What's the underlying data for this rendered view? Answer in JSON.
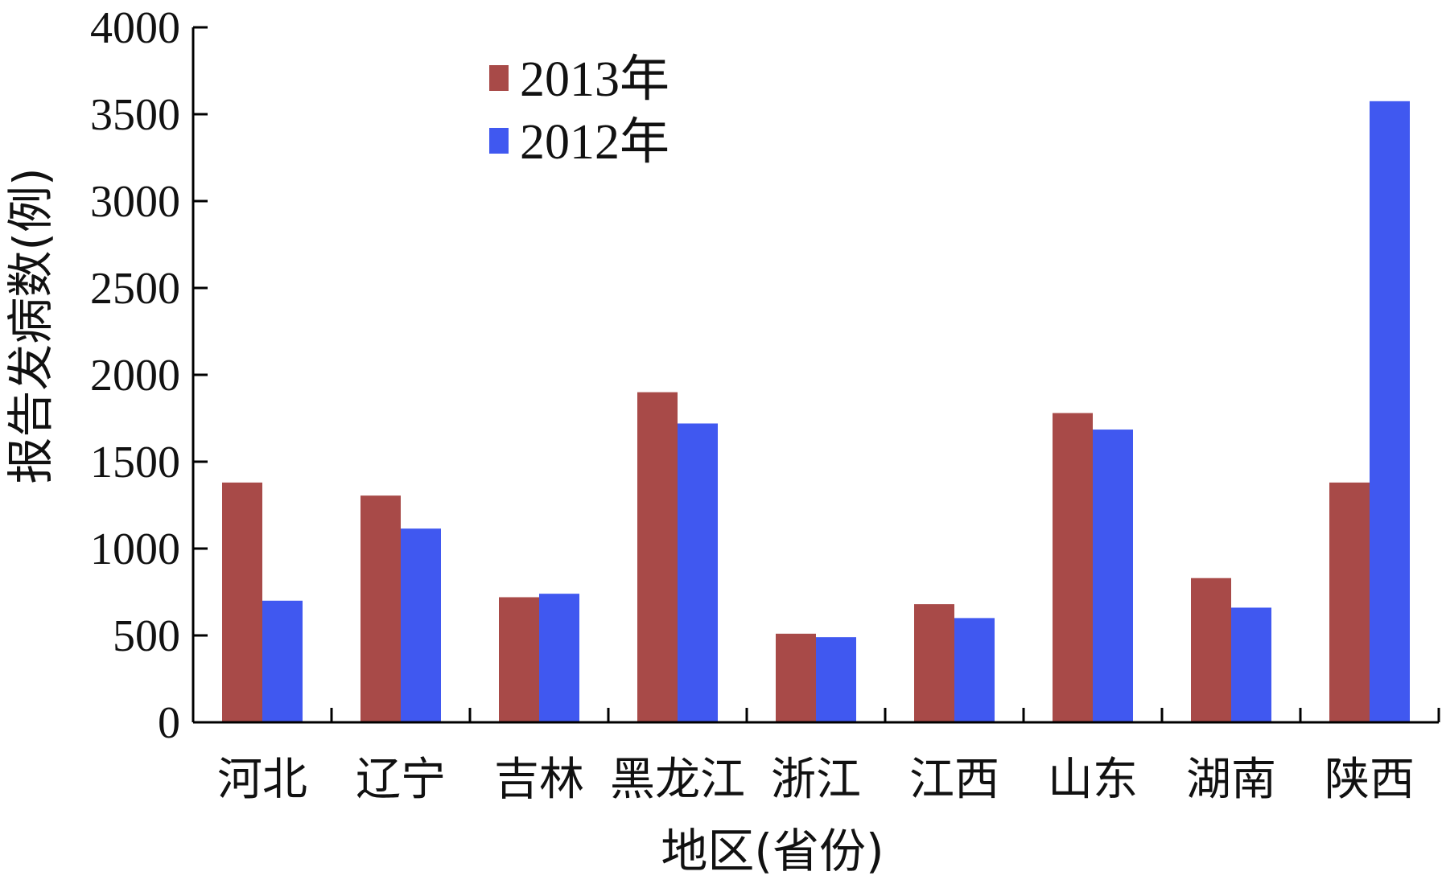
{
  "chart_data": {
    "type": "bar",
    "title": "",
    "xlabel": "地区(省份)",
    "ylabel": "报告发病数(例)",
    "ylim": [
      0,
      4000
    ],
    "yticks": [
      0,
      500,
      1000,
      1500,
      2000,
      2500,
      3000,
      3500,
      4000
    ],
    "categories": [
      "河北",
      "辽宁",
      "吉林",
      "黑龙江",
      "浙江",
      "江西",
      "山东",
      "湖南",
      "陕西"
    ],
    "series": [
      {
        "name": "2013年",
        "color": "#a84a48",
        "values": [
          1380,
          1305,
          720,
          1900,
          510,
          680,
          1780,
          830,
          1380
        ]
      },
      {
        "name": "2012年",
        "color": "#4058f0",
        "values": [
          700,
          1115,
          740,
          1720,
          490,
          600,
          1685,
          660,
          3575
        ]
      }
    ],
    "legend_position": "top-left",
    "grid": false
  }
}
